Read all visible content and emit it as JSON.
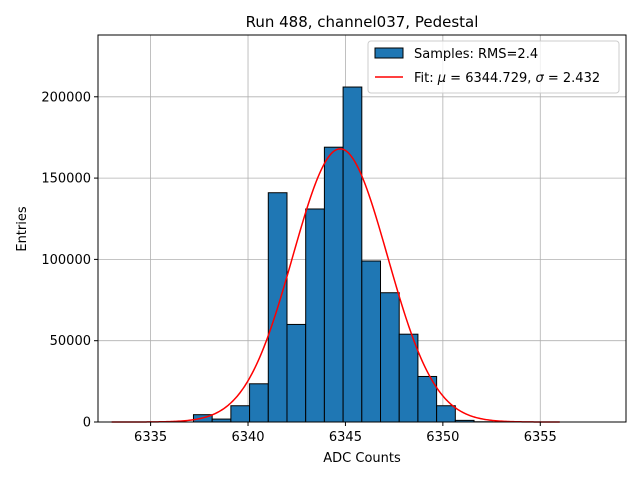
{
  "chart_data": {
    "type": "bar",
    "title": "Run 488, channel037, Pedestal",
    "xlabel": "ADC Counts",
    "ylabel": "Entries",
    "xlim": [
      6332.3,
      6359.4
    ],
    "ylim": [
      0,
      238000
    ],
    "xticks": [
      6335,
      6340,
      6345,
      6350,
      6355
    ],
    "yticks": [
      0,
      50000,
      100000,
      150000,
      200000
    ],
    "grid": true,
    "legend_position": "top-right",
    "colors": {
      "bar_fill": "#1f77b4",
      "bar_edge": "#000000",
      "fit_line": "#ff0000",
      "grid": "#b0b0b0"
    },
    "histogram": {
      "name": "Samples: RMS=2.4",
      "bin_width": 0.96,
      "bins": [
        {
          "left": 6337.2,
          "value": 4500
        },
        {
          "left": 6338.16,
          "value": 1800
        },
        {
          "left": 6339.12,
          "value": 10000
        },
        {
          "left": 6340.08,
          "value": 23500
        },
        {
          "left": 6341.04,
          "value": 141000
        },
        {
          "left": 6342.0,
          "value": 60000
        },
        {
          "left": 6342.96,
          "value": 131000
        },
        {
          "left": 6343.92,
          "value": 169000
        },
        {
          "left": 6344.88,
          "value": 206000
        },
        {
          "left": 6345.84,
          "value": 99000
        },
        {
          "left": 6346.8,
          "value": 79500
        },
        {
          "left": 6347.76,
          "value": 54000
        },
        {
          "left": 6348.72,
          "value": 28000
        },
        {
          "left": 6349.68,
          "value": 10000
        },
        {
          "left": 6350.64,
          "value": 1000
        },
        {
          "left": 6351.6,
          "value": 150
        }
      ]
    },
    "fit": {
      "name_prefix": "Fit: ",
      "mu_symbol": "μ",
      "mu_text": " = 6344.729, ",
      "sigma_symbol": "σ",
      "sigma_text": " = 2.432",
      "mu": 6344.729,
      "sigma": 2.432,
      "amplitude": 168000,
      "x_range": [
        6333.0,
        6356.0
      ]
    }
  }
}
